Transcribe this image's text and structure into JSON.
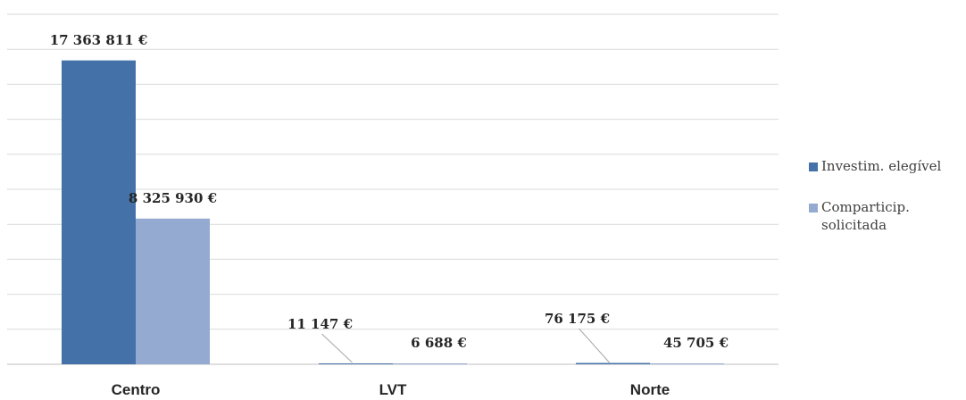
{
  "chart_data": {
    "type": "bar",
    "categories": [
      "Centro",
      "LVT",
      "Norte"
    ],
    "series": [
      {
        "name": "Investim. elegível",
        "values": [
          17363811,
          11147,
          76175
        ],
        "labels": [
          "17 363 811 €",
          "11 147 €",
          "76 175 €"
        ],
        "color": "#4472A8"
      },
      {
        "name": "Comparticip. solicitada",
        "values": [
          8325930,
          6688,
          45705
        ],
        "labels": [
          "8 325 930 €",
          "6 688 €",
          "45 705 €"
        ],
        "color": "#95AAD1"
      }
    ],
    "ylim": [
      0,
      20000000
    ],
    "grid": true,
    "legend_position": "right",
    "legend": {
      "item_0_line_1": "Investim. elegível",
      "item_1_line_1": "Comparticip.",
      "item_1_line_2": "solicitada"
    }
  }
}
